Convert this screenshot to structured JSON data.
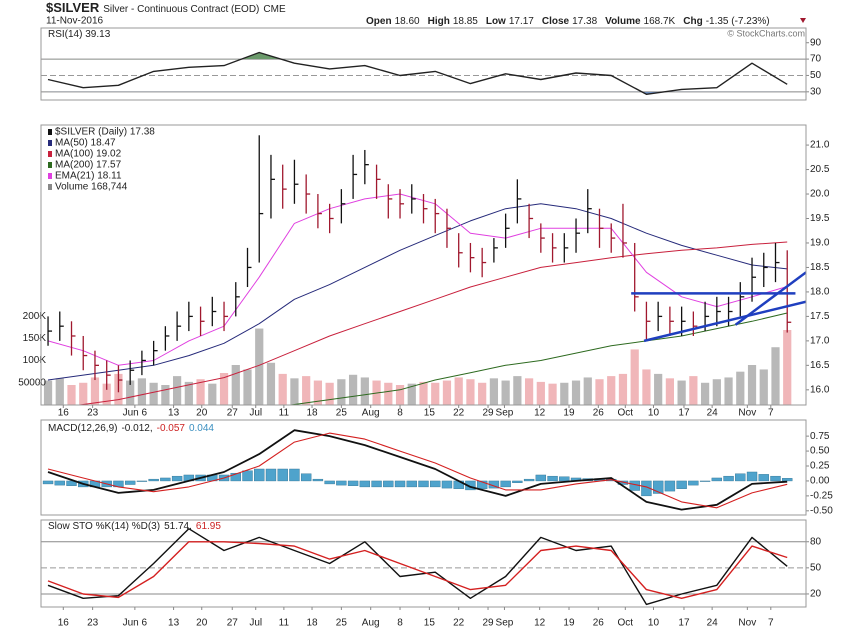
{
  "header": {
    "symbol": "$SILVER",
    "name": "Silver - Continuous Contract (EOD)",
    "exchange": "CME",
    "date": "11-Nov-2016",
    "quote": [
      {
        "label": "Open",
        "value": "18.60"
      },
      {
        "label": "High",
        "value": "18.85"
      },
      {
        "label": "Low",
        "value": "17.17"
      },
      {
        "label": "Close",
        "value": "17.38"
      },
      {
        "label": "Volume",
        "value": "168.7K"
      },
      {
        "label": "Chg",
        "value": "-1.35 (-7.23%)"
      }
    ],
    "copyright": "© StockCharts.com"
  },
  "chart_data": [
    {
      "type": "line",
      "label": [
        {
          "text": "RSI(14) 39.13",
          "color": "#222"
        }
      ],
      "x": [
        0,
        3,
        6,
        9,
        12,
        15,
        18,
        21,
        24,
        27,
        30,
        33,
        36,
        39,
        42,
        45,
        48,
        51,
        54,
        57,
        60,
        63
      ],
      "series": [
        {
          "name": "RSI(14)",
          "color": "#222",
          "values": [
            45,
            35,
            38,
            55,
            60,
            62,
            78,
            65,
            58,
            62,
            50,
            55,
            40,
            52,
            45,
            53,
            50,
            27,
            33,
            35,
            65,
            39.13
          ]
        }
      ],
      "ylim": [
        20,
        108
      ],
      "yticks": [
        90,
        70,
        50,
        30
      ],
      "levels": [
        70,
        30
      ],
      "midline": 50,
      "fills": [
        {
          "level": 70,
          "side": "above",
          "color": "#6b9a6b"
        },
        {
          "level": 30,
          "side": "below",
          "color": "#6f8fbf"
        }
      ]
    },
    {
      "type": "ohlc",
      "name": "$SILVER (Daily) 17.38",
      "up_color": "#111111",
      "down_color": "#a0182e",
      "x": [
        0,
        1,
        2,
        3,
        4,
        5,
        6,
        7,
        8,
        9,
        10,
        11,
        12,
        13,
        14,
        15,
        16,
        17,
        18,
        19,
        20,
        21,
        22,
        23,
        24,
        25,
        26,
        27,
        28,
        29,
        30,
        31,
        32,
        33,
        34,
        35,
        36,
        37,
        38,
        39,
        40,
        41,
        42,
        43,
        44,
        45,
        46,
        47,
        48,
        49,
        50,
        51,
        52,
        53,
        54,
        55,
        56,
        57,
        58,
        59,
        60,
        61,
        62,
        63
      ],
      "high": [
        17.5,
        17.6,
        17.4,
        17.1,
        16.8,
        16.6,
        16.5,
        16.6,
        16.8,
        17.0,
        17.3,
        17.6,
        17.8,
        17.7,
        17.9,
        17.8,
        18.2,
        18.9,
        21.2,
        20.8,
        20.6,
        20.7,
        20.4,
        20.0,
        19.8,
        20.1,
        20.8,
        20.9,
        20.6,
        20.2,
        20.1,
        20.2,
        20.0,
        19.9,
        19.7,
        19.2,
        19.0,
        18.9,
        19.1,
        19.6,
        20.3,
        19.8,
        19.4,
        19.2,
        19.2,
        19.5,
        20.1,
        19.7,
        19.4,
        19.8,
        19.0,
        17.8,
        17.8,
        17.7,
        17.7,
        17.6,
        17.8,
        17.9,
        17.9,
        18.2,
        18.7,
        18.8,
        19.0,
        18.85
      ],
      "low": [
        16.9,
        17.0,
        16.7,
        16.4,
        16.2,
        16.0,
        15.95,
        16.1,
        16.3,
        16.5,
        16.8,
        17.0,
        17.2,
        17.1,
        17.3,
        17.2,
        17.5,
        18.1,
        18.6,
        19.5,
        19.7,
        19.8,
        19.6,
        19.3,
        19.2,
        19.4,
        19.9,
        20.2,
        19.9,
        19.5,
        19.5,
        19.6,
        19.4,
        19.2,
        18.9,
        18.5,
        18.4,
        18.3,
        18.6,
        18.9,
        19.4,
        19.1,
        18.8,
        18.6,
        18.6,
        18.8,
        19.2,
        18.9,
        18.8,
        18.7,
        17.6,
        17.0,
        17.2,
        17.1,
        17.1,
        17.1,
        17.2,
        17.3,
        17.3,
        17.5,
        17.8,
        18.1,
        18.2,
        17.17
      ],
      "close": [
        17.2,
        17.3,
        17.1,
        16.7,
        16.5,
        16.3,
        16.2,
        16.4,
        16.6,
        16.8,
        17.1,
        17.3,
        17.5,
        17.4,
        17.6,
        17.5,
        17.9,
        18.5,
        19.6,
        20.3,
        20.1,
        20.2,
        20.0,
        19.6,
        19.5,
        19.8,
        20.4,
        20.6,
        20.3,
        19.9,
        19.8,
        19.9,
        19.7,
        19.6,
        19.3,
        18.8,
        18.7,
        18.6,
        18.9,
        19.3,
        19.9,
        19.5,
        19.1,
        18.9,
        18.9,
        19.2,
        19.7,
        19.3,
        19.1,
        19.0,
        17.9,
        17.4,
        17.5,
        17.4,
        17.4,
        17.3,
        17.5,
        17.6,
        17.6,
        17.9,
        18.3,
        18.5,
        18.6,
        17.38
      ],
      "overlay_x": [
        0,
        3,
        6,
        9,
        12,
        15,
        18,
        21,
        24,
        27,
        30,
        33,
        36,
        39,
        42,
        45,
        48,
        51,
        54,
        57,
        60,
        63
      ],
      "overlays": [
        {
          "name": "MA(50) 18.47",
          "color": "#262a7a",
          "values": [
            16.2,
            16.3,
            16.4,
            16.5,
            16.7,
            16.95,
            17.35,
            17.85,
            18.15,
            18.5,
            18.85,
            19.15,
            19.45,
            19.7,
            19.8,
            19.7,
            19.5,
            19.2,
            18.95,
            18.75,
            18.55,
            18.47
          ]
        },
        {
          "name": "MA(100) 19.02",
          "color": "#c8203c",
          "values": [
            15.6,
            15.7,
            15.8,
            15.95,
            16.1,
            16.25,
            16.5,
            16.8,
            17.1,
            17.35,
            17.6,
            17.85,
            18.1,
            18.3,
            18.5,
            18.6,
            18.7,
            18.78,
            18.85,
            18.9,
            18.97,
            19.02
          ]
        },
        {
          "name": "MA(200) 17.57",
          "color": "#2d6a1f",
          "values": [
            15.0,
            15.1,
            15.2,
            15.3,
            15.4,
            15.5,
            15.6,
            15.7,
            15.8,
            15.9,
            16.0,
            16.2,
            16.35,
            16.5,
            16.6,
            16.75,
            16.9,
            17.0,
            17.1,
            17.25,
            17.4,
            17.57
          ]
        },
        {
          "name": "EMA(21) 18.11",
          "color": "#e040e0",
          "values": [
            17.0,
            16.8,
            16.5,
            16.6,
            17.0,
            17.3,
            18.3,
            19.4,
            19.7,
            19.9,
            20.0,
            19.8,
            19.2,
            19.1,
            19.3,
            19.3,
            19.3,
            18.4,
            17.9,
            17.7,
            17.9,
            18.11
          ]
        }
      ],
      "volume": {
        "name": "Volume 168,744",
        "up_color": "#b8b8b8",
        "down_color": "#f0b6b9",
        "legend_color": "#888888",
        "values": [
          55000,
          60000,
          45000,
          50000,
          62000,
          48000,
          70000,
          55000,
          60000,
          50000,
          45000,
          65000,
          52000,
          58000,
          48000,
          72000,
          90000,
          80000,
          172000,
          95000,
          70000,
          60000,
          65000,
          55000,
          50000,
          58000,
          68000,
          62000,
          55000,
          50000,
          45000,
          48000,
          52000,
          50000,
          55000,
          62000,
          58000,
          50000,
          60000,
          55000,
          65000,
          60000,
          52000,
          48000,
          50000,
          55000,
          62000,
          58000,
          65000,
          70000,
          125000,
          80000,
          70000,
          60000,
          55000,
          65000,
          50000,
          58000,
          62000,
          75000,
          90000,
          80000,
          130000,
          168744
        ],
        "ylim": [
          0,
          630000
        ],
        "yticks": [
          {
            "value": 200000,
            "label": "200K"
          },
          {
            "value": 150000,
            "label": "150K"
          },
          {
            "value": 100000,
            "label": "100K"
          },
          50000
        ]
      },
      "trendline_color": "#1f3fbf",
      "trendlines": [
        {
          "x": [
            50.8,
            64.6
          ],
          "y": [
            17.0,
            17.8
          ]
        },
        {
          "x": [
            58.6,
            64.6
          ],
          "y": [
            17.33,
            18.4
          ]
        },
        {
          "x": [
            49.7,
            63.7
          ],
          "y": [
            17.97,
            17.97
          ]
        }
      ],
      "ylim": [
        15.69,
        21.41
      ],
      "yticks": [
        {
          "value": 21,
          "label": "21.0"
        },
        20.5,
        {
          "value": 20,
          "label": "20.0"
        },
        19.5,
        {
          "value": 19,
          "label": "19.0"
        },
        18.5,
        {
          "value": 18,
          "label": "18.0"
        },
        17.5,
        {
          "value": 17,
          "label": "17.0"
        },
        16.5,
        {
          "value": 16,
          "label": "16.0"
        }
      ],
      "xlim": [
        -0.6,
        64.6
      ],
      "xticks": [
        {
          "value": 1.3,
          "label": "16"
        },
        {
          "value": 3.8,
          "label": "23"
        },
        {
          "value": 7.4,
          "label": "Jun 6"
        },
        {
          "value": 10.7,
          "label": "13"
        },
        {
          "value": 13.1,
          "label": "20"
        },
        {
          "value": 15.7,
          "label": "27"
        },
        {
          "value": 17.7,
          "label": "Jul"
        },
        {
          "value": 20.1,
          "label": "11"
        },
        {
          "value": 22.5,
          "label": "18"
        },
        {
          "value": 25,
          "label": "25"
        },
        {
          "value": 27.5,
          "label": "Aug"
        },
        {
          "value": 30,
          "label": "8"
        },
        {
          "value": 32.5,
          "label": "15"
        },
        {
          "value": 35,
          "label": "22"
        },
        {
          "value": 37.5,
          "label": "29"
        },
        {
          "value": 38.9,
          "label": "Sep"
        },
        {
          "value": 41.9,
          "label": "12"
        },
        {
          "value": 44.4,
          "label": "19"
        },
        {
          "value": 46.9,
          "label": "26"
        },
        {
          "value": 49.2,
          "label": "Oct"
        },
        {
          "value": 51.6,
          "label": "10"
        },
        {
          "value": 54.2,
          "label": "17"
        },
        {
          "value": 56.6,
          "label": "24"
        },
        {
          "value": 59.6,
          "label": "Nov"
        },
        {
          "value": 61.6,
          "label": "7"
        }
      ]
    },
    {
      "type": "macd",
      "label": [
        {
          "text": "MACD(12,26,9)",
          "color": "#222"
        },
        {
          "text": "-0.012,",
          "color": "#222"
        },
        {
          "text": "-0.057",
          "color": "#cc2222"
        },
        {
          "text": "0.044",
          "color": "#3a8fc0"
        }
      ],
      "x": [
        0,
        3,
        6,
        9,
        12,
        15,
        18,
        21,
        24,
        27,
        30,
        33,
        36,
        39,
        42,
        45,
        48,
        51,
        54,
        57,
        60,
        63
      ],
      "series": [
        {
          "name": "MACD",
          "color": "#111111",
          "values": [
            0.15,
            -0.05,
            -0.2,
            -0.15,
            0.0,
            0.15,
            0.45,
            0.85,
            0.75,
            0.6,
            0.4,
            0.2,
            -0.1,
            -0.25,
            -0.05,
            0.0,
            0.05,
            -0.35,
            -0.48,
            -0.4,
            -0.05,
            -0.012
          ]
        },
        {
          "name": "Signal",
          "color": "#d42020",
          "values": [
            0.2,
            0.05,
            -0.1,
            -0.18,
            -0.1,
            0.05,
            0.25,
            0.65,
            0.8,
            0.7,
            0.5,
            0.3,
            0.05,
            -0.15,
            -0.15,
            -0.05,
            0.02,
            -0.1,
            -0.35,
            -0.45,
            -0.2,
            -0.057
          ]
        }
      ],
      "histogram": {
        "color": "#4fa3cc",
        "x": [
          0,
          1,
          2,
          3,
          4,
          5,
          6,
          7,
          8,
          9,
          10,
          11,
          12,
          13,
          14,
          15,
          16,
          17,
          18,
          19,
          20,
          21,
          22,
          23,
          24,
          25,
          26,
          27,
          28,
          29,
          30,
          31,
          32,
          33,
          34,
          35,
          36,
          37,
          38,
          39,
          40,
          41,
          42,
          43,
          44,
          45,
          46,
          47,
          48,
          49,
          50,
          51,
          52,
          53,
          54,
          55,
          56,
          57,
          58,
          59,
          60,
          61,
          62,
          63
        ],
        "values": [
          -0.05,
          -0.07,
          -0.08,
          -0.1,
          -0.1,
          -0.1,
          -0.1,
          -0.06,
          -0.01,
          0.03,
          0.05,
          0.08,
          0.1,
          0.1,
          0.1,
          0.1,
          0.13,
          0.17,
          0.2,
          0.2,
          0.2,
          0.2,
          0.12,
          0.03,
          -0.05,
          -0.07,
          -0.08,
          -0.1,
          -0.1,
          -0.1,
          -0.1,
          -0.1,
          -0.1,
          -0.1,
          -0.12,
          -0.13,
          -0.15,
          -0.13,
          -0.12,
          -0.1,
          -0.03,
          0.03,
          0.1,
          0.08,
          0.07,
          0.05,
          0.04,
          0.04,
          0.03,
          -0.06,
          -0.16,
          -0.25,
          -0.21,
          -0.17,
          -0.13,
          -0.07,
          -0.01,
          0.05,
          0.08,
          0.12,
          0.15,
          0.11,
          0.08,
          0.044
        ]
      },
      "ylim": [
        -0.57,
        1.02
      ],
      "yticks": [
        0.75,
        {
          "value": 0.5,
          "label": "0.50"
        },
        0.25,
        {
          "value": 0,
          "label": "0.00"
        },
        -0.25,
        {
          "value": -0.5,
          "label": "-0.50"
        }
      ]
    },
    {
      "type": "line",
      "label": [
        {
          "text": "Slow STO %K(14) %D(3)",
          "color": "#222"
        },
        {
          "text": "51.74,",
          "color": "#222"
        },
        {
          "text": "61.95",
          "color": "#cc2222"
        }
      ],
      "x": [
        0,
        3,
        6,
        9,
        12,
        15,
        18,
        21,
        24,
        27,
        30,
        33,
        36,
        39,
        42,
        45,
        48,
        51,
        54,
        57,
        60,
        63
      ],
      "series": [
        {
          "name": "%K",
          "color": "#111111",
          "values": [
            30,
            15,
            18,
            55,
            95,
            70,
            85,
            70,
            55,
            80,
            40,
            45,
            15,
            40,
            85,
            70,
            75,
            8,
            20,
            30,
            85,
            51.74
          ]
        },
        {
          "name": "%D",
          "color": "#d42020",
          "values": [
            35,
            20,
            16,
            40,
            80,
            80,
            78,
            75,
            60,
            70,
            55,
            40,
            25,
            30,
            70,
            75,
            70,
            25,
            15,
            25,
            75,
            61.95
          ]
        }
      ],
      "ylim": [
        5,
        105
      ],
      "yticks": [
        80,
        50,
        20
      ],
      "levels": [
        80,
        20
      ],
      "midline": 50
    }
  ]
}
